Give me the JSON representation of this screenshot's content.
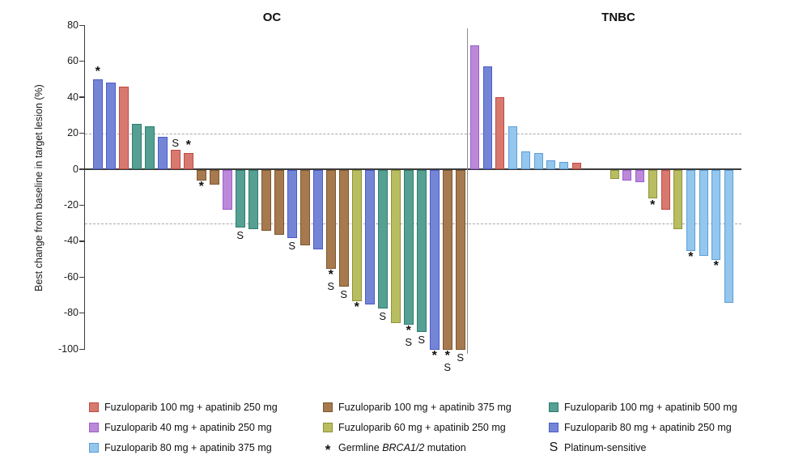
{
  "groups": {
    "red": {
      "label": "Fuzuloparib 100 mg + apatinib 250 mg",
      "fill": "#D87970",
      "border": "#BE4B42"
    },
    "brown": {
      "label": "Fuzuloparib 100 mg + apatinib 375 mg",
      "fill": "#A67A4E",
      "border": "#7D572F"
    },
    "teal": {
      "label": "Fuzuloparib 100 mg + apatinib 500 mg",
      "fill": "#55A093",
      "border": "#2E7D6E"
    },
    "purple": {
      "label": "Fuzuloparib 40 mg + apatinib 250 mg",
      "fill": "#BC88D9",
      "border": "#9C5FCB"
    },
    "olive": {
      "label": "Fuzuloparib 60 mg + apatinib 250 mg",
      "fill": "#B9BD62",
      "border": "#8F9338"
    },
    "blue": {
      "label": "Fuzuloparib 80 mg + apatinib 250 mg",
      "fill": "#7585D6",
      "border": "#4A5BC8"
    },
    "lightblue": {
      "label": "Fuzuloparib 80 mg + apatinib 375 mg",
      "fill": "#94C7EE",
      "border": "#5C9DD6"
    }
  },
  "legend": {
    "columns": [
      [
        {
          "group": "red"
        },
        {
          "group": "purple"
        },
        {
          "group": "lightblue"
        }
      ],
      [
        {
          "group": "brown"
        },
        {
          "group": "olive"
        },
        {
          "symbol": "*",
          "label_parts": [
            {
              "t": "Germline "
            },
            {
              "t": "BRCA1/2",
              "italic": true
            },
            {
              "t": " mutation"
            }
          ]
        }
      ],
      [
        {
          "group": "teal"
        },
        {
          "group": "blue"
        },
        {
          "symbol": "S",
          "label_parts": [
            {
              "t": "Platinum-sensitive"
            }
          ]
        }
      ]
    ]
  },
  "chart_data": {
    "type": "bar",
    "ylabel": "Best change from baseline in target lesion (%)",
    "ylim": [
      -100,
      80
    ],
    "yticks": [
      80,
      60,
      40,
      20,
      0,
      -20,
      -40,
      -60,
      -80,
      -100
    ],
    "reference_lines": [
      20,
      -30
    ],
    "legend_position": "bottom",
    "marker_meanings": {
      "*": "Germline BRCA1/2 mutation",
      "S": "Platinum-sensitive"
    },
    "panels": [
      {
        "title": "OC",
        "bars": [
          {
            "group": "blue",
            "value": 50,
            "markers": [
              "*"
            ]
          },
          {
            "group": "blue",
            "value": 48
          },
          {
            "group": "red",
            "value": 46
          },
          {
            "group": "teal",
            "value": 25
          },
          {
            "group": "teal",
            "value": 24
          },
          {
            "group": "blue",
            "value": 18
          },
          {
            "group": "red",
            "value": 11,
            "markers": [
              "S"
            ]
          },
          {
            "group": "red",
            "value": 9,
            "markers": [
              "*"
            ]
          },
          {
            "group": "brown",
            "value": -6,
            "markers": [
              "*"
            ]
          },
          {
            "group": "brown",
            "value": -8
          },
          {
            "group": "purple",
            "value": -22
          },
          {
            "group": "teal",
            "value": -32,
            "markers": [
              "S"
            ]
          },
          {
            "group": "teal",
            "value": -33
          },
          {
            "group": "brown",
            "value": -34
          },
          {
            "group": "brown",
            "value": -36
          },
          {
            "group": "blue",
            "value": -38,
            "markers": [
              "S"
            ]
          },
          {
            "group": "brown",
            "value": -42
          },
          {
            "group": "blue",
            "value": -44
          },
          {
            "group": "brown",
            "value": -55,
            "markers": [
              "*",
              "S"
            ]
          },
          {
            "group": "brown",
            "value": -65,
            "markers": [
              "S"
            ]
          },
          {
            "group": "olive",
            "value": -73,
            "markers": [
              "*"
            ]
          },
          {
            "group": "blue",
            "value": -75
          },
          {
            "group": "teal",
            "value": -77,
            "markers": [
              "S"
            ]
          },
          {
            "group": "olive",
            "value": -85
          },
          {
            "group": "teal",
            "value": -86,
            "markers": [
              "*",
              "S"
            ]
          },
          {
            "group": "teal",
            "value": -90,
            "markers": [
              "S"
            ]
          },
          {
            "group": "blue",
            "value": -100,
            "markers": [
              "*"
            ]
          },
          {
            "group": "brown",
            "value": -100,
            "markers": [
              "*",
              "S"
            ]
          },
          {
            "group": "brown",
            "value": -100,
            "markers": [
              "S"
            ]
          }
        ]
      },
      {
        "title": "TNBC",
        "bars": [
          {
            "group": "purple",
            "value": 69
          },
          {
            "group": "blue",
            "value": 57
          },
          {
            "group": "red",
            "value": 40
          },
          {
            "group": "lightblue",
            "value": 24
          },
          {
            "group": "lightblue",
            "value": 10
          },
          {
            "group": "lightblue",
            "value": 9
          },
          {
            "group": "lightblue",
            "value": 5
          },
          {
            "group": "lightblue",
            "value": 4
          },
          {
            "group": "red",
            "value": 3.5
          },
          {
            "value": 0
          },
          {
            "value": 0
          },
          {
            "group": "olive",
            "value": -5
          },
          {
            "group": "purple",
            "value": -6
          },
          {
            "group": "purple",
            "value": -7
          },
          {
            "group": "olive",
            "value": -16,
            "markers": [
              "*"
            ]
          },
          {
            "group": "red",
            "value": -22
          },
          {
            "group": "olive",
            "value": -33
          },
          {
            "group": "lightblue",
            "value": -45,
            "markers": [
              "*"
            ]
          },
          {
            "group": "lightblue",
            "value": -48
          },
          {
            "group": "lightblue",
            "value": -50,
            "markers": [
              "*"
            ]
          },
          {
            "group": "lightblue",
            "value": -74
          }
        ]
      }
    ]
  }
}
